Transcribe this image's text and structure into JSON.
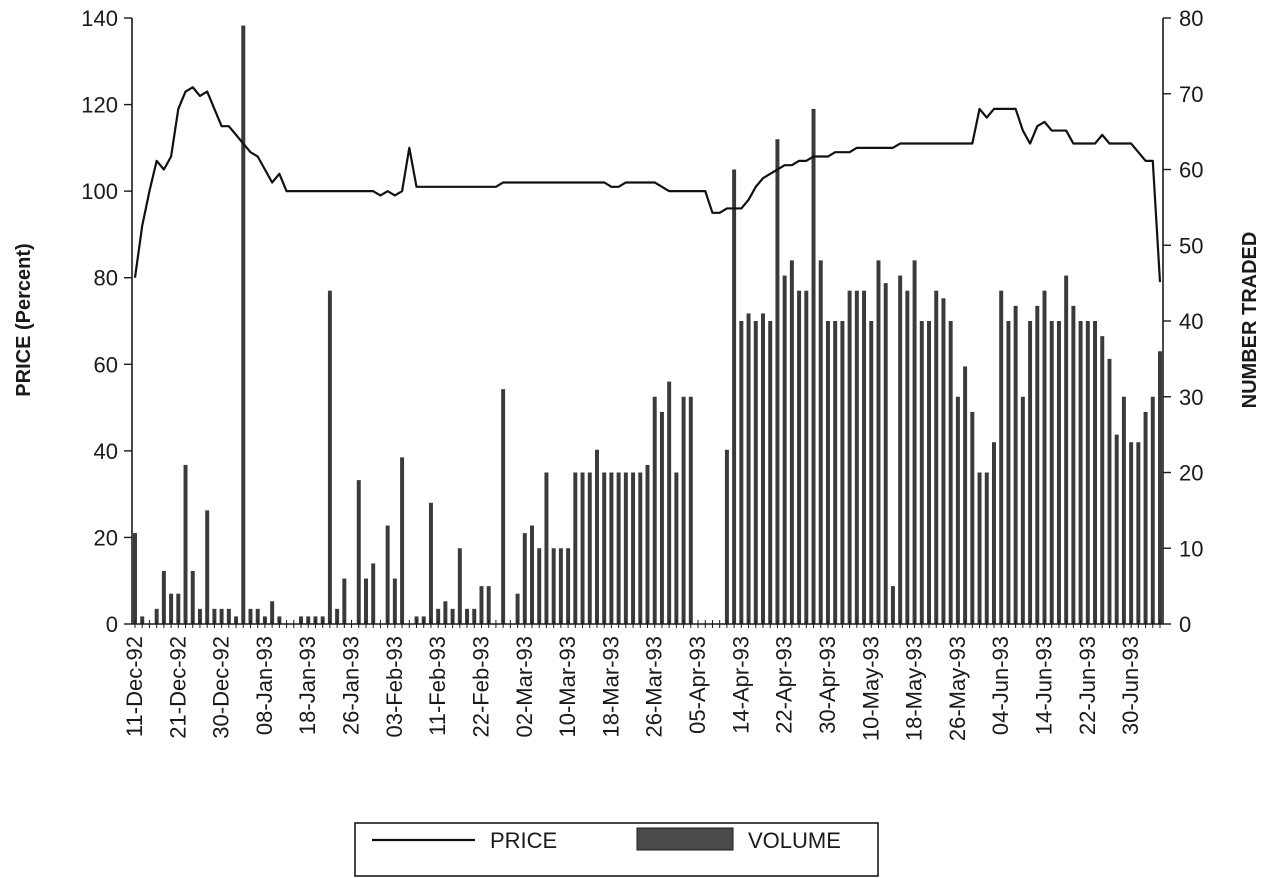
{
  "chart_data": {
    "type": "bar+line",
    "ylabel_left": "PRICE (Percent)",
    "ylabel_right": "NUMBER TRADED",
    "ylim_left": [
      0,
      140
    ],
    "ylim_right": [
      0,
      80
    ],
    "yticks_left": [
      "0",
      "20",
      "40",
      "60",
      "80",
      "100",
      "120",
      "140"
    ],
    "yticks_right": [
      "0",
      "10",
      "20",
      "30",
      "40",
      "50",
      "60",
      "70",
      "80"
    ],
    "x_tick_labels": [
      "11-Dec-92",
      "21-Dec-92",
      "30-Dec-92",
      "08-Jan-93",
      "18-Jan-93",
      "26-Jan-93",
      "03-Feb-93",
      "11-Feb-93",
      "22-Feb-93",
      "02-Mar-93",
      "10-Mar-93",
      "18-Mar-93",
      "26-Mar-93",
      "05-Apr-93",
      "14-Apr-93",
      "22-Apr-93",
      "30-Apr-93",
      "10-May-93",
      "18-May-93",
      "26-May-93",
      "04-Jun-93",
      "14-Jun-93",
      "22-Jun-93",
      "30-Jun-93"
    ],
    "x_tick_positions": [
      0,
      6,
      12,
      18,
      24,
      30,
      36,
      42,
      48,
      54,
      60,
      66,
      72,
      78,
      84,
      90,
      96,
      102,
      108,
      114,
      120,
      126,
      132,
      138
    ],
    "n_days": 143,
    "legend": {
      "position": "bottom-center",
      "price_label": "PRICE",
      "volume_label": "VOLUME"
    },
    "series": [
      {
        "name": "PRICE",
        "kind": "line",
        "axis": "left",
        "points": [
          [
            0,
            80
          ],
          [
            1,
            92
          ],
          [
            2,
            100
          ],
          [
            3,
            107
          ],
          [
            4,
            105
          ],
          [
            5,
            108
          ],
          [
            6,
            119
          ],
          [
            7,
            123
          ],
          [
            8,
            124
          ],
          [
            9,
            122
          ],
          [
            10,
            123
          ],
          [
            11,
            119
          ],
          [
            12,
            115
          ],
          [
            13,
            115
          ],
          [
            14,
            113
          ],
          [
            15,
            111
          ],
          [
            16,
            109
          ],
          [
            17,
            108
          ],
          [
            18,
            105
          ],
          [
            19,
            102
          ],
          [
            20,
            104
          ],
          [
            21,
            100
          ],
          [
            22,
            100
          ],
          [
            23,
            100
          ],
          [
            24,
            100
          ],
          [
            25,
            100
          ],
          [
            26,
            100
          ],
          [
            27,
            100
          ],
          [
            28,
            100
          ],
          [
            29,
            100
          ],
          [
            30,
            100
          ],
          [
            31,
            100
          ],
          [
            32,
            100
          ],
          [
            33,
            100
          ],
          [
            34,
            99
          ],
          [
            35,
            100
          ],
          [
            36,
            99
          ],
          [
            37,
            100
          ],
          [
            38,
            110
          ],
          [
            39,
            101
          ],
          [
            40,
            101
          ],
          [
            41,
            101
          ],
          [
            42,
            101
          ],
          [
            43,
            101
          ],
          [
            44,
            101
          ],
          [
            45,
            101
          ],
          [
            46,
            101
          ],
          [
            47,
            101
          ],
          [
            48,
            101
          ],
          [
            49,
            101
          ],
          [
            50,
            101
          ],
          [
            51,
            102
          ],
          [
            52,
            102
          ],
          [
            53,
            102
          ],
          [
            54,
            102
          ],
          [
            55,
            102
          ],
          [
            56,
            102
          ],
          [
            57,
            102
          ],
          [
            58,
            102
          ],
          [
            59,
            102
          ],
          [
            60,
            102
          ],
          [
            61,
            102
          ],
          [
            62,
            102
          ],
          [
            63,
            102
          ],
          [
            64,
            102
          ],
          [
            65,
            102
          ],
          [
            66,
            101
          ],
          [
            67,
            101
          ],
          [
            68,
            102
          ],
          [
            69,
            102
          ],
          [
            70,
            102
          ],
          [
            71,
            102
          ],
          [
            72,
            102
          ],
          [
            73,
            101
          ],
          [
            74,
            100
          ],
          [
            75,
            100
          ],
          [
            76,
            100
          ],
          [
            77,
            100
          ],
          [
            78,
            100
          ],
          [
            79,
            100
          ],
          [
            80,
            95
          ],
          [
            81,
            95
          ],
          [
            82,
            96
          ],
          [
            83,
            96
          ],
          [
            84,
            96
          ],
          [
            85,
            98
          ],
          [
            86,
            101
          ],
          [
            87,
            103
          ],
          [
            88,
            104
          ],
          [
            89,
            105
          ],
          [
            90,
            106
          ],
          [
            91,
            106
          ],
          [
            92,
            107
          ],
          [
            93,
            107
          ],
          [
            94,
            108
          ],
          [
            95,
            108
          ],
          [
            96,
            108
          ],
          [
            97,
            109
          ],
          [
            98,
            109
          ],
          [
            99,
            109
          ],
          [
            100,
            110
          ],
          [
            101,
            110
          ],
          [
            102,
            110
          ],
          [
            103,
            110
          ],
          [
            104,
            110
          ],
          [
            105,
            110
          ],
          [
            106,
            111
          ],
          [
            107,
            111
          ],
          [
            108,
            111
          ],
          [
            109,
            111
          ],
          [
            110,
            111
          ],
          [
            111,
            111
          ],
          [
            112,
            111
          ],
          [
            113,
            111
          ],
          [
            114,
            111
          ],
          [
            115,
            111
          ],
          [
            116,
            111
          ],
          [
            117,
            119
          ],
          [
            118,
            117
          ],
          [
            119,
            119
          ],
          [
            120,
            119
          ],
          [
            121,
            119
          ],
          [
            122,
            119
          ],
          [
            123,
            114
          ],
          [
            124,
            111
          ],
          [
            125,
            115
          ],
          [
            126,
            116
          ],
          [
            127,
            114
          ],
          [
            128,
            114
          ],
          [
            129,
            114
          ],
          [
            130,
            111
          ],
          [
            131,
            111
          ],
          [
            132,
            111
          ],
          [
            133,
            111
          ],
          [
            134,
            113
          ],
          [
            135,
            111
          ],
          [
            136,
            111
          ],
          [
            137,
            111
          ],
          [
            138,
            111
          ],
          [
            139,
            109
          ],
          [
            140,
            107
          ],
          [
            141,
            107
          ],
          [
            142,
            79
          ]
        ]
      },
      {
        "name": "VOLUME",
        "kind": "bar",
        "axis": "right",
        "points": [
          [
            0,
            12
          ],
          [
            1,
            1
          ],
          [
            3,
            2
          ],
          [
            4,
            7
          ],
          [
            5,
            4
          ],
          [
            6,
            4
          ],
          [
            7,
            21
          ],
          [
            8,
            7
          ],
          [
            9,
            2
          ],
          [
            10,
            15
          ],
          [
            11,
            2
          ],
          [
            12,
            2
          ],
          [
            13,
            2
          ],
          [
            14,
            1
          ],
          [
            15,
            79
          ],
          [
            16,
            2
          ],
          [
            17,
            2
          ],
          [
            18,
            1
          ],
          [
            19,
            3
          ],
          [
            20,
            1
          ],
          [
            23,
            1
          ],
          [
            24,
            1
          ],
          [
            25,
            1
          ],
          [
            26,
            1
          ],
          [
            27,
            44
          ],
          [
            28,
            2
          ],
          [
            29,
            6
          ],
          [
            31,
            19
          ],
          [
            32,
            6
          ],
          [
            33,
            8
          ],
          [
            35,
            13
          ],
          [
            36,
            6
          ],
          [
            37,
            22
          ],
          [
            39,
            1
          ],
          [
            40,
            1
          ],
          [
            41,
            16
          ],
          [
            42,
            2
          ],
          [
            43,
            3
          ],
          [
            44,
            2
          ],
          [
            45,
            10
          ],
          [
            46,
            2
          ],
          [
            47,
            2
          ],
          [
            48,
            5
          ],
          [
            49,
            5
          ],
          [
            51,
            31
          ],
          [
            53,
            4
          ],
          [
            54,
            12
          ],
          [
            55,
            13
          ],
          [
            56,
            10
          ],
          [
            57,
            20
          ],
          [
            58,
            10
          ],
          [
            59,
            10
          ],
          [
            60,
            10
          ],
          [
            61,
            20
          ],
          [
            62,
            20
          ],
          [
            63,
            20
          ],
          [
            64,
            23
          ],
          [
            65,
            20
          ],
          [
            66,
            20
          ],
          [
            67,
            20
          ],
          [
            68,
            20
          ],
          [
            69,
            20
          ],
          [
            70,
            20
          ],
          [
            71,
            21
          ],
          [
            72,
            30
          ],
          [
            73,
            28
          ],
          [
            74,
            32
          ],
          [
            75,
            20
          ],
          [
            76,
            30
          ],
          [
            77,
            30
          ],
          [
            82,
            23
          ],
          [
            83,
            60
          ],
          [
            84,
            40
          ],
          [
            85,
            41
          ],
          [
            86,
            40
          ],
          [
            87,
            41
          ],
          [
            88,
            40
          ],
          [
            89,
            64
          ],
          [
            90,
            46
          ],
          [
            91,
            48
          ],
          [
            92,
            44
          ],
          [
            93,
            44
          ],
          [
            94,
            68
          ],
          [
            95,
            48
          ],
          [
            96,
            40
          ],
          [
            97,
            40
          ],
          [
            98,
            40
          ],
          [
            99,
            44
          ],
          [
            100,
            44
          ],
          [
            101,
            44
          ],
          [
            102,
            40
          ],
          [
            103,
            48
          ],
          [
            104,
            45
          ],
          [
            105,
            5
          ],
          [
            106,
            46
          ],
          [
            107,
            44
          ],
          [
            108,
            48
          ],
          [
            109,
            40
          ],
          [
            110,
            40
          ],
          [
            111,
            44
          ],
          [
            112,
            43
          ],
          [
            113,
            40
          ],
          [
            114,
            30
          ],
          [
            115,
            34
          ],
          [
            116,
            28
          ],
          [
            117,
            20
          ],
          [
            118,
            20
          ],
          [
            119,
            24
          ],
          [
            120,
            44
          ],
          [
            121,
            40
          ],
          [
            122,
            42
          ],
          [
            123,
            30
          ],
          [
            124,
            40
          ],
          [
            125,
            42
          ],
          [
            126,
            44
          ],
          [
            127,
            40
          ],
          [
            128,
            40
          ],
          [
            129,
            46
          ],
          [
            130,
            42
          ],
          [
            131,
            40
          ],
          [
            132,
            40
          ],
          [
            133,
            40
          ],
          [
            134,
            38
          ],
          [
            135,
            35
          ],
          [
            136,
            25
          ],
          [
            137,
            30
          ],
          [
            138,
            24
          ],
          [
            139,
            24
          ],
          [
            140,
            28
          ],
          [
            141,
            30
          ],
          [
            142,
            36
          ]
        ]
      }
    ]
  }
}
